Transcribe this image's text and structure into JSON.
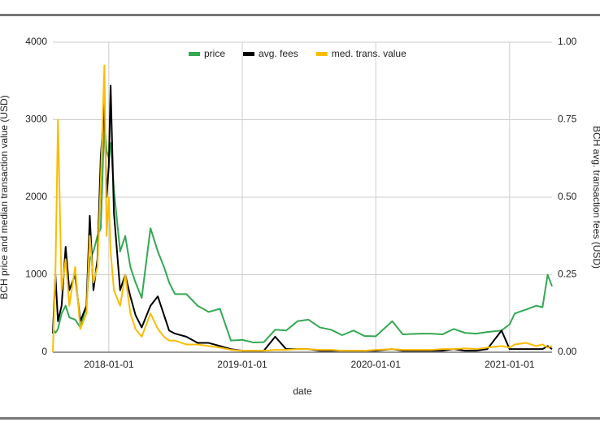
{
  "chart_data": {
    "type": "line",
    "xlabel": "date",
    "ylabel": "BCH price and median transaction value (USD)",
    "y2label": "BCH avg. transaction fees (USD)",
    "x": [
      "2017-08-01",
      "2017-08-08",
      "2017-08-15",
      "2017-08-25",
      "2017-09-05",
      "2017-09-15",
      "2017-10-01",
      "2017-10-15",
      "2017-11-01",
      "2017-11-10",
      "2017-11-20",
      "2017-12-01",
      "2017-12-10",
      "2017-12-20",
      "2017-12-26",
      "2018-01-01",
      "2018-01-06",
      "2018-01-15",
      "2018-02-01",
      "2018-02-15",
      "2018-03-01",
      "2018-03-15",
      "2018-04-01",
      "2018-04-25",
      "2018-05-15",
      "2018-06-01",
      "2018-06-15",
      "2018-07-01",
      "2018-08-01",
      "2018-09-01",
      "2018-10-01",
      "2018-11-01",
      "2018-12-01",
      "2019-01-01",
      "2019-02-01",
      "2019-03-01",
      "2019-04-01",
      "2019-05-01",
      "2019-06-01",
      "2019-07-01",
      "2019-08-01",
      "2019-09-01",
      "2019-10-01",
      "2019-11-01",
      "2019-12-01",
      "2020-01-01",
      "2020-02-15",
      "2020-03-15",
      "2020-05-01",
      "2020-06-01",
      "2020-07-01",
      "2020-08-01",
      "2020-09-01",
      "2020-10-01",
      "2020-11-01",
      "2020-12-10",
      "2021-01-01",
      "2021-01-15",
      "2021-02-15",
      "2021-03-15",
      "2021-04-01",
      "2021-04-15",
      "2021-04-27"
    ],
    "series": [
      {
        "name": "price",
        "color": "#34a853",
        "values": [
          300,
          250,
          300,
          500,
          600,
          450,
          420,
          320,
          600,
          1200,
          1300,
          1500,
          1600,
          3000,
          2600,
          2500,
          2700,
          2100,
          1300,
          1500,
          1100,
          900,
          700,
          1600,
          1300,
          1100,
          900,
          750,
          750,
          600,
          520,
          560,
          150,
          160,
          125,
          130,
          290,
          280,
          400,
          420,
          320,
          290,
          220,
          280,
          210,
          205,
          400,
          230,
          240,
          240,
          230,
          300,
          250,
          240,
          260,
          280,
          360,
          500,
          550,
          600,
          580,
          1000,
          850
        ]
      },
      {
        "name": "avg. fees",
        "color": "#000000",
        "axis": "y2",
        "values": [
          0.06,
          0.25,
          0.1,
          0.15,
          0.34,
          0.2,
          0.25,
          0.1,
          0.15,
          0.44,
          0.2,
          0.3,
          0.63,
          0.8,
          0.5,
          0.6,
          0.86,
          0.45,
          0.2,
          0.25,
          0.18,
          0.12,
          0.08,
          0.15,
          0.18,
          0.12,
          0.07,
          0.06,
          0.05,
          0.03,
          0.03,
          0.02,
          0.01,
          0.005,
          0.005,
          0.005,
          0.05,
          0.01,
          0.01,
          0.01,
          0.005,
          0.005,
          0.005,
          0.005,
          0.005,
          0.005,
          0.01,
          0.005,
          0.005,
          0.005,
          0.005,
          0.01,
          0.005,
          0.005,
          0.01,
          0.07,
          0.01,
          0.01,
          0.01,
          0.01,
          0.01,
          0.02,
          0.01
        ]
      },
      {
        "name": "med. trans. value",
        "color": "#fbbc04",
        "values": [
          0,
          1000,
          3000,
          800,
          1200,
          600,
          1100,
          300,
          500,
          1500,
          900,
          1100,
          2200,
          3700,
          1500,
          2000,
          1300,
          800,
          600,
          1000,
          500,
          300,
          200,
          500,
          300,
          200,
          150,
          150,
          100,
          100,
          80,
          60,
          30,
          20,
          20,
          20,
          30,
          30,
          40,
          40,
          30,
          30,
          20,
          20,
          20,
          30,
          40,
          30,
          30,
          30,
          40,
          40,
          50,
          40,
          60,
          80,
          60,
          100,
          120,
          80,
          100,
          60,
          80
        ]
      }
    ],
    "xlim": [
      "2017-08-01",
      "2021-04-27"
    ],
    "xticks": [
      "2018-01-01",
      "2019-01-01",
      "2020-01-01",
      "2021-01-01"
    ],
    "ylim": [
      0,
      4000
    ],
    "yticks": [
      0,
      1000,
      2000,
      3000,
      4000
    ],
    "y2lim": [
      0,
      1
    ],
    "y2ticks": [
      {
        "value": 0,
        "label": "0.00"
      },
      {
        "value": 0.25,
        "label": "0.25"
      },
      {
        "value": 0.5,
        "label": "0.50"
      },
      {
        "value": 0.75,
        "label": "0.75"
      },
      {
        "value": 1,
        "label": "1.00"
      }
    ],
    "grid": true,
    "legend": "top"
  }
}
